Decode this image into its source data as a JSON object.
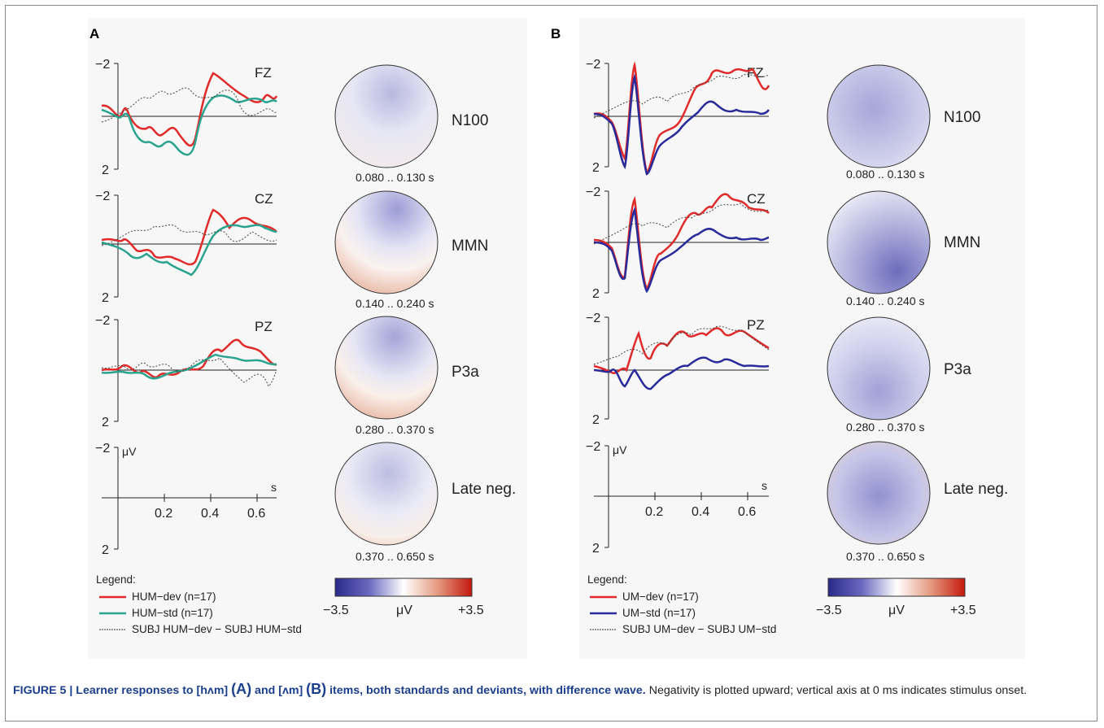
{
  "panels": [
    {
      "label": "A",
      "channels": [
        {
          "name": "FZ",
          "component": "N100",
          "time_range": "0.080 .. 0.130 s"
        },
        {
          "name": "CZ",
          "component": "MMN",
          "time_range": "0.140 .. 0.240 s"
        },
        {
          "name": "PZ",
          "component": "P3a",
          "time_range": "0.280 .. 0.370 s"
        },
        {
          "name": "",
          "component": "Late neg.",
          "time_range": "0.370 .. 0.650 s"
        }
      ],
      "legend": {
        "title": "Legend:",
        "items": [
          {
            "label": "HUM−dev (n=17)",
            "color": "#e12a2a"
          },
          {
            "label": "HUM−std (n=17)",
            "color": "#2aa38f"
          },
          {
            "label": "SUBJ HUM−dev − SUBJ HUM−std",
            "color": "#333333"
          }
        ]
      }
    },
    {
      "label": "B",
      "channels": [
        {
          "name": "FZ",
          "component": "N100",
          "time_range": "0.080 .. 0.130 s"
        },
        {
          "name": "CZ",
          "component": "MMN",
          "time_range": "0.140 .. 0.240 s"
        },
        {
          "name": "PZ",
          "component": "P3a",
          "time_range": "0.280 .. 0.370 s"
        },
        {
          "name": "",
          "component": "Late neg.",
          "time_range": "0.370 .. 0.650 s"
        }
      ],
      "legend": {
        "title": "Legend:",
        "items": [
          {
            "label": "UM−dev (n=17)",
            "color": "#e12a2a"
          },
          {
            "label": "UM−std (n=17)",
            "color": "#2a2a9a"
          },
          {
            "label": "SUBJ UM−dev − SUBJ UM−std",
            "color": "#333333"
          }
        ]
      }
    }
  ],
  "axis": {
    "y_top": "−2",
    "y_bottom": "2",
    "y_unit": "μV",
    "x_unit": "s",
    "x_ticks": [
      "0.2",
      "0.4",
      "0.6"
    ]
  },
  "colorbar": {
    "min": "−3.5",
    "unit": "μV",
    "max": "+3.5"
  },
  "caption": {
    "prefix": "FIGURE 5 | ",
    "title_part1": "Learner responses to [hʌm] ",
    "title_a": "(A)",
    "title_part2": " and [ʌm] ",
    "title_b": "(B)",
    "title_part3": " items, both standards and deviants, with difference wave.",
    "body": " Negativity is plotted upward; vertical axis at 0 ms indicates stimulus onset."
  },
  "colors": {
    "negative": "#3a3aa0",
    "positive": "#c8281e",
    "neutral": "#ffffff"
  }
}
